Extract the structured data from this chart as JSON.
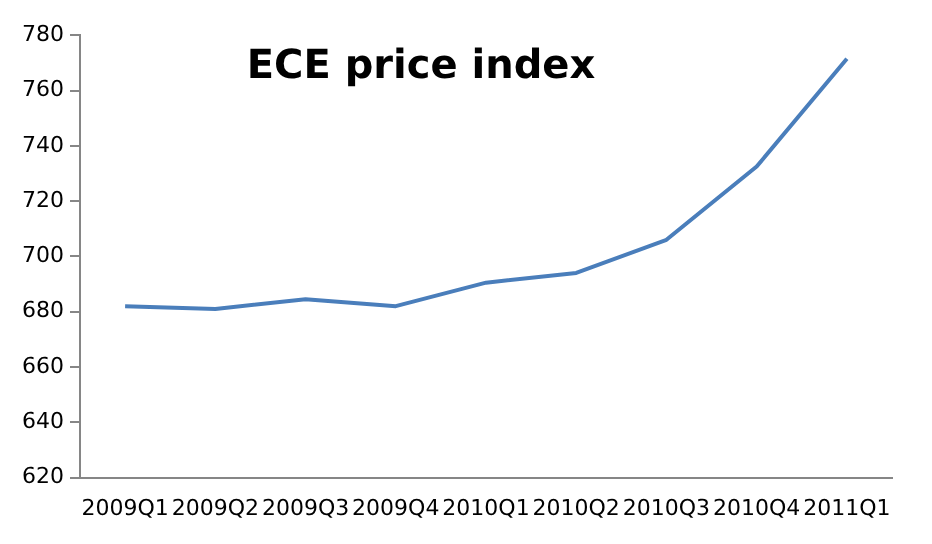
{
  "chart_data": {
    "type": "line",
    "title": "ECE price index",
    "categories": [
      "2009Q1",
      "2009Q2",
      "2009Q3",
      "2009Q4",
      "2010Q1",
      "2010Q2",
      "2010Q3",
      "2010Q4",
      "2011Q1"
    ],
    "series": [
      {
        "color": "#4a7ebb",
        "values": [
          682,
          681,
          684.5,
          682,
          690.5,
          694,
          706,
          732.5,
          771.5
        ]
      }
    ],
    "ylim": [
      620,
      780
    ],
    "yticks": [
      620,
      640,
      660,
      680,
      700,
      720,
      740,
      760,
      780
    ],
    "grid": false,
    "legend": false,
    "marker": "none"
  }
}
